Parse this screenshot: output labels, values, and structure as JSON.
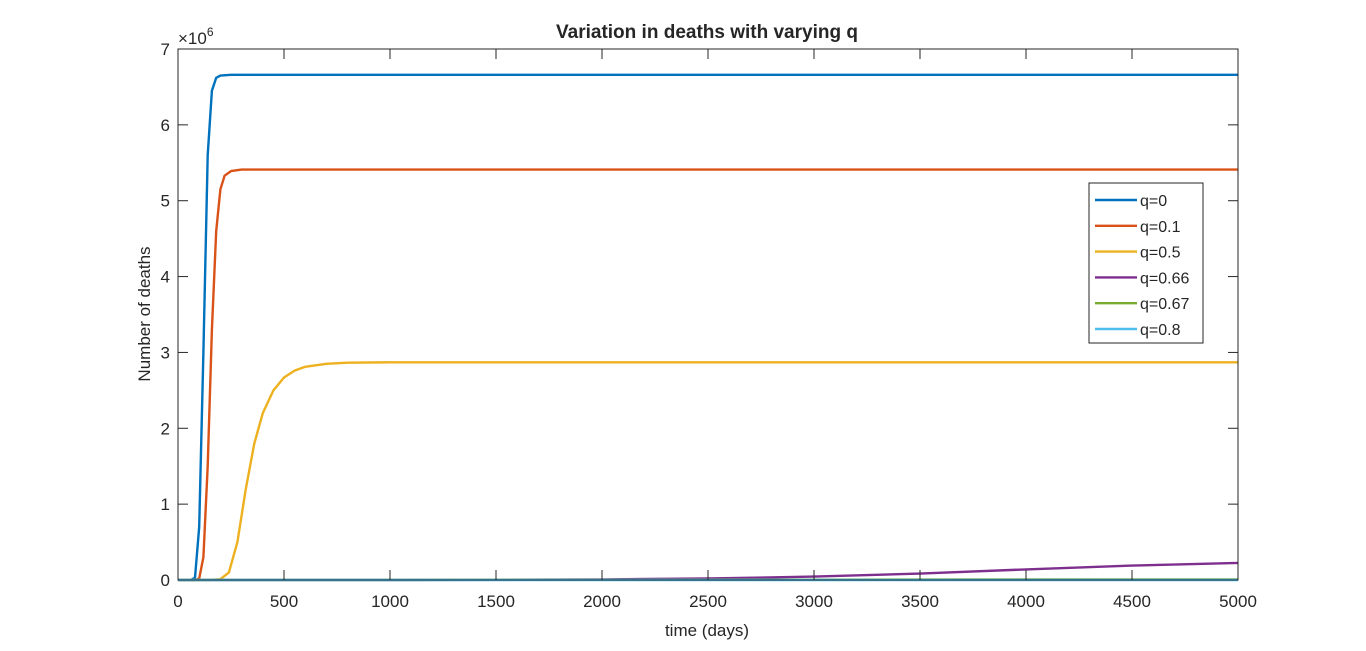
{
  "chart_data": {
    "type": "line",
    "title": "Variation in deaths with varying q",
    "xlabel": "time (days)",
    "ylabel": "Number of deaths",
    "y_exponent_label": "×10",
    "y_exponent_power": "6",
    "xlim": [
      0,
      5000
    ],
    "ylim": [
      0,
      7000000
    ],
    "x_ticks": [
      0,
      500,
      1000,
      1500,
      2000,
      2500,
      3000,
      3500,
      4000,
      4500,
      5000
    ],
    "x_tick_labels": [
      "0",
      "500",
      "1000",
      "1500",
      "2000",
      "2500",
      "3000",
      "3500",
      "4000",
      "4500",
      "5000"
    ],
    "y_ticks": [
      0,
      1000000,
      2000000,
      3000000,
      4000000,
      5000000,
      6000000,
      7000000
    ],
    "y_tick_labels": [
      "0",
      "1",
      "2",
      "3",
      "4",
      "5",
      "6",
      "7"
    ],
    "grid": false,
    "legend_position": "top-right",
    "series": [
      {
        "name": "q=0",
        "color": "#0072BD",
        "points": [
          [
            0,
            0
          ],
          [
            60,
            0
          ],
          [
            80,
            30000
          ],
          [
            100,
            700000
          ],
          [
            120,
            3000000
          ],
          [
            140,
            5600000
          ],
          [
            160,
            6450000
          ],
          [
            180,
            6620000
          ],
          [
            200,
            6650000
          ],
          [
            250,
            6660000
          ],
          [
            5000,
            6660000
          ]
        ]
      },
      {
        "name": "q=0.1",
        "color": "#D95319",
        "points": [
          [
            0,
            0
          ],
          [
            80,
            0
          ],
          [
            100,
            20000
          ],
          [
            120,
            300000
          ],
          [
            140,
            1500000
          ],
          [
            160,
            3300000
          ],
          [
            180,
            4600000
          ],
          [
            200,
            5150000
          ],
          [
            220,
            5330000
          ],
          [
            250,
            5390000
          ],
          [
            300,
            5410000
          ],
          [
            5000,
            5410000
          ]
        ]
      },
      {
        "name": "q=0.5",
        "color": "#EDB120",
        "points": [
          [
            0,
            0
          ],
          [
            150,
            0
          ],
          [
            200,
            10000
          ],
          [
            240,
            100000
          ],
          [
            280,
            500000
          ],
          [
            320,
            1200000
          ],
          [
            360,
            1800000
          ],
          [
            400,
            2200000
          ],
          [
            450,
            2500000
          ],
          [
            500,
            2670000
          ],
          [
            550,
            2760000
          ],
          [
            600,
            2810000
          ],
          [
            700,
            2850000
          ],
          [
            800,
            2865000
          ],
          [
            1000,
            2870000
          ],
          [
            5000,
            2870000
          ]
        ]
      },
      {
        "name": "q=0.66",
        "color": "#7E2F8E",
        "points": [
          [
            0,
            0
          ],
          [
            1000,
            0
          ],
          [
            1500,
            3000
          ],
          [
            2000,
            8000
          ],
          [
            2500,
            20000
          ],
          [
            3000,
            45000
          ],
          [
            3500,
            85000
          ],
          [
            4000,
            140000
          ],
          [
            4500,
            190000
          ],
          [
            5000,
            225000
          ]
        ]
      },
      {
        "name": "q=0.67",
        "color": "#77AC30",
        "points": [
          [
            0,
            0
          ],
          [
            2000,
            2000
          ],
          [
            3000,
            4000
          ],
          [
            4000,
            6000
          ],
          [
            5000,
            8000
          ]
        ]
      },
      {
        "name": "q=0.8",
        "color": "#4DBEEE",
        "points": [
          [
            0,
            0
          ],
          [
            5000,
            0
          ]
        ]
      }
    ]
  }
}
